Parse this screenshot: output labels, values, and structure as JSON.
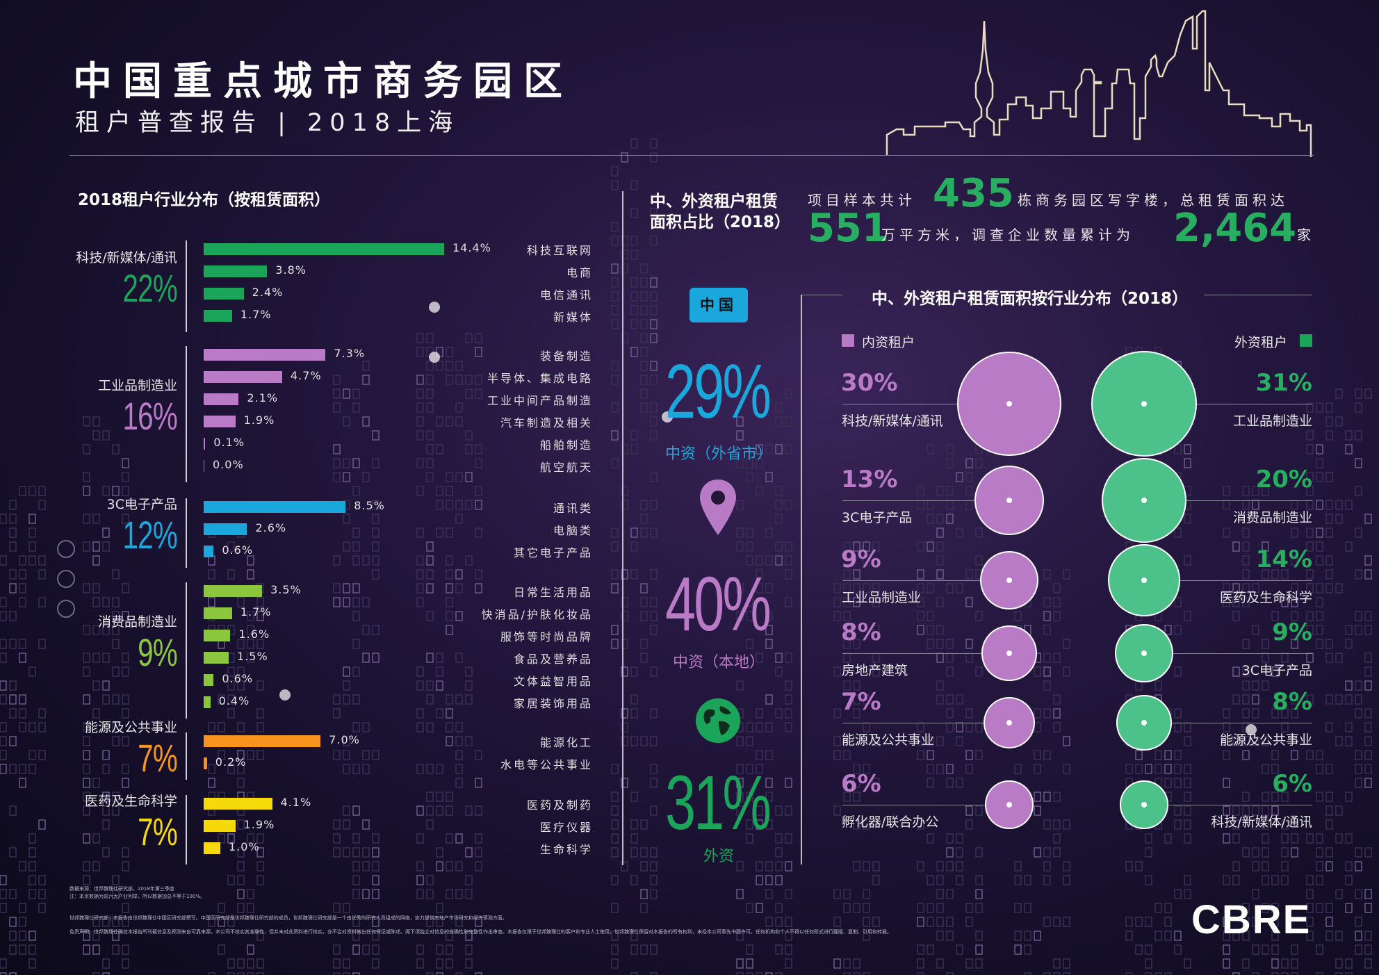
{
  "header": {
    "title": "中国重点城市商务园区",
    "subtitle": "租户普查报告 | 2018上海"
  },
  "left_section": {
    "title": "2018租户行业分布（按租赁面积）"
  },
  "summary": {
    "part1": "项目样本共计",
    "num1": "435",
    "part2": "栋商务园区写字楼，总租赁面积达",
    "num2": "551",
    "part3": "万平方米，调查企业数量累计为",
    "num3": "2,464",
    "part4": "家"
  },
  "middle_section": {
    "title_line1": "中、外资租户租赁",
    "title_line2": "面积占比（2018）",
    "china_badge": "中国",
    "icon_names": [
      "map-pin-icon",
      "globe-icon"
    ]
  },
  "right_section": {
    "title": "中、外资租户租赁面积按行业分布（2018）",
    "legend_domestic": "内资租户",
    "legend_foreign": "外资租户"
  },
  "chart_data": [
    {
      "type": "bar",
      "title": "2018租户行业分布（按租赁面积）",
      "unit": "%",
      "xlim": [
        0,
        14.4
      ],
      "groups": [
        {
          "name": "科技/新媒体/通讯",
          "total": "22%",
          "color": "#1aa55a",
          "items": [
            {
              "label": "科技互联网",
              "value": 14.4,
              "text": "14.4%"
            },
            {
              "label": "电商",
              "value": 3.8,
              "text": "3.8%"
            },
            {
              "label": "电信通讯",
              "value": 2.4,
              "text": "2.4%"
            },
            {
              "label": "新媒体",
              "value": 1.7,
              "text": "1.7%"
            }
          ]
        },
        {
          "name": "工业品制造业",
          "total": "16%",
          "color": "#b97ac6",
          "items": [
            {
              "label": "装备制造",
              "value": 7.3,
              "text": "7.3%"
            },
            {
              "label": "半导体、集成电路",
              "value": 4.7,
              "text": "4.7%"
            },
            {
              "label": "工业中间产品制造",
              "value": 2.1,
              "text": "2.1%"
            },
            {
              "label": "汽车制造及相关",
              "value": 1.9,
              "text": "1.9%"
            },
            {
              "label": "船舶制造",
              "value": 0.1,
              "text": "0.1%"
            },
            {
              "label": "航空航天",
              "value": 0.0,
              "text": "0.0%"
            }
          ]
        },
        {
          "name": "3C电子产品",
          "total": "12%",
          "color": "#1aa8dc",
          "items": [
            {
              "label": "通讯类",
              "value": 8.5,
              "text": "8.5%"
            },
            {
              "label": "电脑类",
              "value": 2.6,
              "text": "2.6%"
            },
            {
              "label": "其它电子产品",
              "value": 0.6,
              "text": "0.6%"
            }
          ]
        },
        {
          "name": "消费品制造业",
          "total": "9%",
          "color": "#8cc63f",
          "items": [
            {
              "label": "日常生活用品",
              "value": 3.5,
              "text": "3.5%"
            },
            {
              "label": "快消品/护肤化妆品",
              "value": 1.7,
              "text": "1.7%"
            },
            {
              "label": "服饰等时尚品牌",
              "value": 1.6,
              "text": "1.6%"
            },
            {
              "label": "食品及营养品",
              "value": 1.5,
              "text": "1.5%"
            },
            {
              "label": "文体益智用品",
              "value": 0.6,
              "text": "0.6%"
            },
            {
              "label": "家居装饰用品",
              "value": 0.4,
              "text": "0.4%"
            }
          ]
        },
        {
          "name": "能源及公共事业",
          "total": "7%",
          "color": "#f7941d",
          "items": [
            {
              "label": "能源化工",
              "value": 7.0,
              "text": "7.0%"
            },
            {
              "label": "水电等公共事业",
              "value": 0.2,
              "text": "0.2%"
            }
          ]
        },
        {
          "name": "医药及生命科学",
          "total": "7%",
          "color": "#f5d90a",
          "items": [
            {
              "label": "医药及制药",
              "value": 4.1,
              "text": "4.1%"
            },
            {
              "label": "医疗仪器",
              "value": 1.9,
              "text": "1.9%"
            },
            {
              "label": "生命科学",
              "value": 1.0,
              "text": "1.0%"
            }
          ]
        }
      ]
    },
    {
      "type": "table",
      "title": "中、外资租户租赁面积占比（2018）",
      "rows": [
        {
          "label": "中资（外省市）",
          "value": 29,
          "text": "29%",
          "color": "#1aa8dc"
        },
        {
          "label": "中资（本地）",
          "value": 40,
          "text": "40%",
          "color": "#b97ac6"
        },
        {
          "label": "外资",
          "value": 31,
          "text": "31%",
          "color": "#1aa55a"
        }
      ]
    },
    {
      "type": "scatter",
      "title": "中、外资租户租赁面积按行业分布（2018）",
      "domestic_color": "#b97ac6",
      "foreign_color": "#4cc28a",
      "domestic": [
        {
          "label": "科技/新媒体/通讯",
          "value": 30,
          "text": "30%"
        },
        {
          "label": "3C电子产品",
          "value": 13,
          "text": "13%"
        },
        {
          "label": "工业品制造业",
          "value": 9,
          "text": "9%"
        },
        {
          "label": "房地产建筑",
          "value": 8,
          "text": "8%"
        },
        {
          "label": "能源及公共事业",
          "value": 7,
          "text": "7%"
        },
        {
          "label": "孵化器/联合办公",
          "value": 6,
          "text": "6%"
        }
      ],
      "foreign": [
        {
          "label": "工业品制造业",
          "value": 31,
          "text": "31%"
        },
        {
          "label": "消费品制造业",
          "value": 20,
          "text": "20%"
        },
        {
          "label": "医药及生命科学",
          "value": 14,
          "text": "14%"
        },
        {
          "label": "3C电子产品",
          "value": 9,
          "text": "9%"
        },
        {
          "label": "能源及公共事业",
          "value": 8,
          "text": "8%"
        },
        {
          "label": "科技/新媒体/通讯",
          "value": 6,
          "text": "6%"
        }
      ]
    }
  ],
  "footer": {
    "line1": "数据来源：世邦魏理仕研究部，2018年第三季度",
    "line2": "注：本页数据为前六大产业列举，所以数据加总不等于100%。",
    "line3": "世邦魏理仕研究部 | 本报告由世邦魏理仕中国区研究部撰写。中国区研究部是世邦魏理仕研究部的成员，世邦魏理仕研究部是一个由优秀的研究人员组成的网络，协力提供房地产市场研究和经济预测方面。",
    "line4": "免责声明：世邦魏理仕确信本报告所刊载信息及预测来自可靠来源。本公司不核实其准确性，但并未对此资料进行核实，亦不会对资料做出任何保证或陈述。阁下须独立对信息的准确性和完整性作出审查。本报告仅限于世邦魏理仕的客户和专业人士使用，世邦魏理仕保留对本报告的所有权利，未经本公司事先书面许可，任何机构和个人不得以任何形式进行翻版、复制、引用和转载。",
    "logo": "CBRE"
  }
}
